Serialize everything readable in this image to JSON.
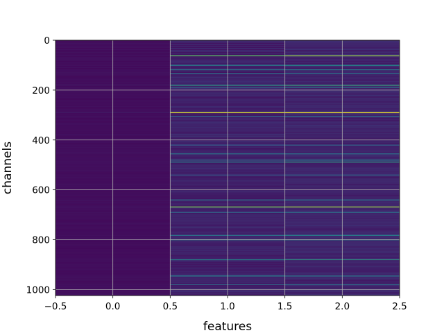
{
  "chart_data": {
    "type": "heatmap",
    "title": "",
    "xlabel": "features",
    "ylabel": "channels",
    "xlim": [
      -0.5,
      2.5
    ],
    "ylim": [
      1024,
      0
    ],
    "y_inverted": true,
    "grid": true,
    "colormap": "viridis",
    "n_channels": 1024,
    "columns": [
      0,
      1,
      2
    ],
    "x_ticks": [
      -0.5,
      0.0,
      0.5,
      1.0,
      1.5,
      2.0,
      2.5
    ],
    "x_tick_labels": [
      "−0.5",
      "0.0",
      "0.5",
      "1.0",
      "1.5",
      "2.0",
      "2.5"
    ],
    "y_ticks": [
      0,
      200,
      400,
      600,
      800,
      1000
    ],
    "y_tick_labels": [
      "0",
      "200",
      "400",
      "600",
      "800",
      "1000"
    ],
    "column_base_values": [
      0.04,
      0.1,
      0.11
    ],
    "bright_channels": [
      {
        "channel": 62,
        "values": [
          0.06,
          0.75,
          0.85
        ]
      },
      {
        "channel": 100,
        "values": [
          0.05,
          0.45,
          0.5
        ]
      },
      {
        "channel": 118,
        "values": [
          0.05,
          0.4,
          0.42
        ]
      },
      {
        "channel": 133,
        "values": [
          0.05,
          0.38,
          0.4
        ]
      },
      {
        "channel": 180,
        "values": [
          0.06,
          0.55,
          0.6
        ]
      },
      {
        "channel": 188,
        "values": [
          0.05,
          0.35,
          0.4
        ]
      },
      {
        "channel": 290,
        "values": [
          0.07,
          0.95,
          0.98
        ]
      },
      {
        "channel": 305,
        "values": [
          0.05,
          0.35,
          0.38
        ]
      },
      {
        "channel": 420,
        "values": [
          0.05,
          0.3,
          0.33
        ]
      },
      {
        "channel": 455,
        "values": [
          0.05,
          0.4,
          0.38
        ]
      },
      {
        "channel": 480,
        "values": [
          0.05,
          0.35,
          0.45
        ]
      },
      {
        "channel": 488,
        "values": [
          0.05,
          0.45,
          0.55
        ]
      },
      {
        "channel": 540,
        "values": [
          0.05,
          0.3,
          0.35
        ]
      },
      {
        "channel": 640,
        "values": [
          0.05,
          0.4,
          0.42
        ]
      },
      {
        "channel": 668,
        "values": [
          0.06,
          0.8,
          0.85
        ]
      },
      {
        "channel": 690,
        "values": [
          0.05,
          0.35,
          0.38
        ]
      },
      {
        "channel": 782,
        "values": [
          0.05,
          0.4,
          0.45
        ]
      },
      {
        "channel": 800,
        "values": [
          0.05,
          0.45,
          0.48
        ]
      },
      {
        "channel": 880,
        "values": [
          0.05,
          0.5,
          0.55
        ]
      },
      {
        "channel": 945,
        "values": [
          0.05,
          0.45,
          0.4
        ]
      },
      {
        "channel": 980,
        "values": [
          0.05,
          0.35,
          0.38
        ]
      }
    ]
  }
}
